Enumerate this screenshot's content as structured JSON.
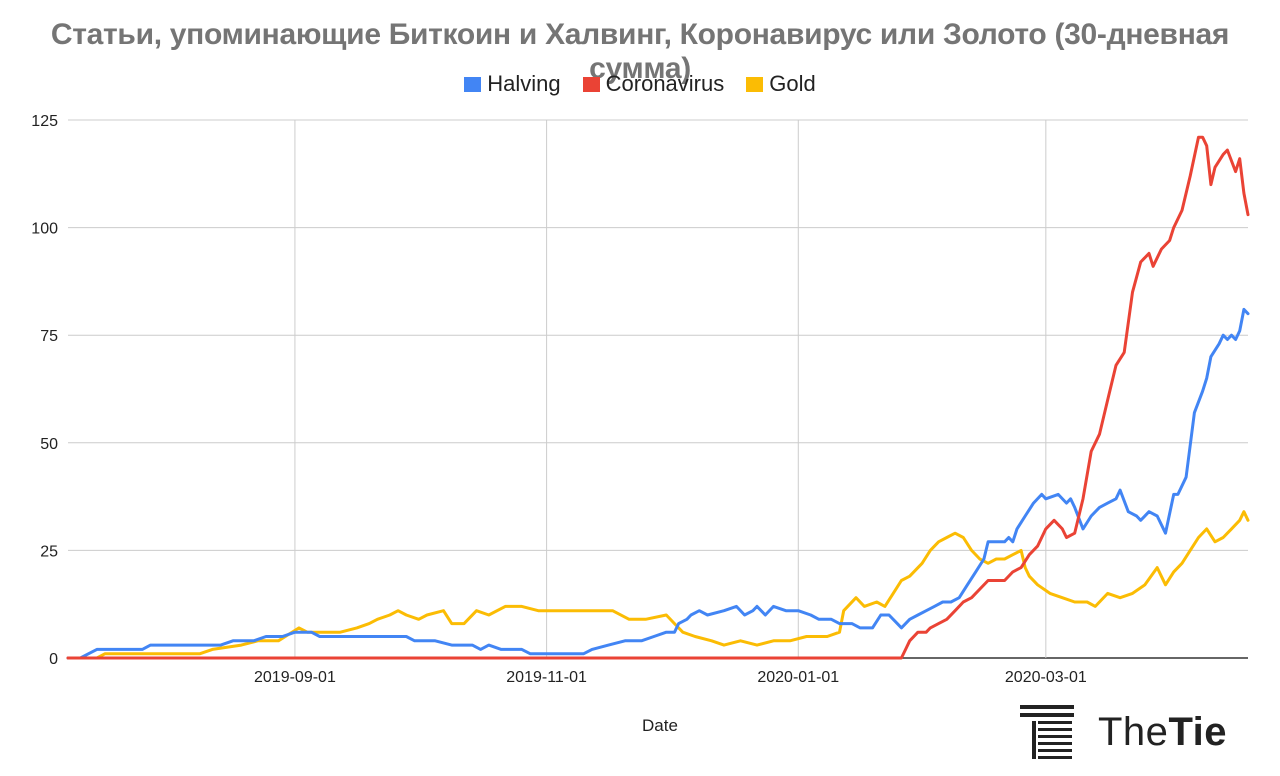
{
  "chart_data": {
    "type": "line",
    "title": "Статьи, упоминающие Биткоин и Халвинг, Коронавирус или Золото (30-дневная сумма)",
    "xlabel": "Date",
    "ylabel": "",
    "ylim": [
      0,
      125
    ],
    "yticks": [
      "0",
      "25",
      "50",
      "75",
      "100",
      "125"
    ],
    "xticks": [
      "2019-09-01",
      "2019-11-01",
      "2020-01-01",
      "2020-03-01"
    ],
    "xrange": [
      "2019-07-08",
      "2020-04-19"
    ],
    "grid": true,
    "legend_position": "top",
    "series": [
      {
        "name": "Halving",
        "color": "#4285f4",
        "points": [
          [
            "2019-07-08",
            0
          ],
          [
            "2019-07-11",
            0
          ],
          [
            "2019-07-13",
            1
          ],
          [
            "2019-07-15",
            2
          ],
          [
            "2019-07-22",
            2
          ],
          [
            "2019-07-26",
            2
          ],
          [
            "2019-07-28",
            3
          ],
          [
            "2019-08-06",
            3
          ],
          [
            "2019-08-14",
            3
          ],
          [
            "2019-08-17",
            4
          ],
          [
            "2019-08-22",
            4
          ],
          [
            "2019-08-25",
            5
          ],
          [
            "2019-08-29",
            5
          ],
          [
            "2019-09-01",
            6
          ],
          [
            "2019-09-05",
            6
          ],
          [
            "2019-09-07",
            5
          ],
          [
            "2019-09-17",
            5
          ],
          [
            "2019-09-23",
            5
          ],
          [
            "2019-09-28",
            5
          ],
          [
            "2019-09-30",
            4
          ],
          [
            "2019-10-05",
            4
          ],
          [
            "2019-10-09",
            3
          ],
          [
            "2019-10-14",
            3
          ],
          [
            "2019-10-16",
            2
          ],
          [
            "2019-10-18",
            3
          ],
          [
            "2019-10-21",
            2
          ],
          [
            "2019-10-26",
            2
          ],
          [
            "2019-10-28",
            1
          ],
          [
            "2019-11-01",
            1
          ],
          [
            "2019-11-06",
            1
          ],
          [
            "2019-11-10",
            1
          ],
          [
            "2019-11-12",
            2
          ],
          [
            "2019-11-16",
            3
          ],
          [
            "2019-11-20",
            4
          ],
          [
            "2019-11-24",
            4
          ],
          [
            "2019-11-27",
            5
          ],
          [
            "2019-11-30",
            6
          ],
          [
            "2019-12-02",
            6
          ],
          [
            "2019-12-03",
            8
          ],
          [
            "2019-12-05",
            9
          ],
          [
            "2019-12-06",
            10
          ],
          [
            "2019-12-08",
            11
          ],
          [
            "2019-12-10",
            10
          ],
          [
            "2019-12-14",
            11
          ],
          [
            "2019-12-17",
            12
          ],
          [
            "2019-12-19",
            10
          ],
          [
            "2019-12-21",
            11
          ],
          [
            "2019-12-22",
            12
          ],
          [
            "2019-12-24",
            10
          ],
          [
            "2019-12-26",
            12
          ],
          [
            "2019-12-29",
            11
          ],
          [
            "2020-01-01",
            11
          ],
          [
            "2020-01-04",
            10
          ],
          [
            "2020-01-06",
            9
          ],
          [
            "2020-01-09",
            9
          ],
          [
            "2020-01-11",
            8
          ],
          [
            "2020-01-14",
            8
          ],
          [
            "2020-01-16",
            7
          ],
          [
            "2020-01-19",
            7
          ],
          [
            "2020-01-21",
            10
          ],
          [
            "2020-01-23",
            10
          ],
          [
            "2020-01-25",
            8
          ],
          [
            "2020-01-26",
            7
          ],
          [
            "2020-01-28",
            9
          ],
          [
            "2020-01-30",
            10
          ],
          [
            "2020-02-01",
            11
          ],
          [
            "2020-02-03",
            12
          ],
          [
            "2020-02-05",
            13
          ],
          [
            "2020-02-07",
            13
          ],
          [
            "2020-02-09",
            14
          ],
          [
            "2020-02-11",
            17
          ],
          [
            "2020-02-13",
            20
          ],
          [
            "2020-02-15",
            23
          ],
          [
            "2020-02-16",
            27
          ],
          [
            "2020-02-19",
            27
          ],
          [
            "2020-02-20",
            27
          ],
          [
            "2020-02-21",
            28
          ],
          [
            "2020-02-22",
            27
          ],
          [
            "2020-02-23",
            30
          ],
          [
            "2020-02-25",
            33
          ],
          [
            "2020-02-27",
            36
          ],
          [
            "2020-02-29",
            38
          ],
          [
            "2020-03-01",
            37
          ],
          [
            "2020-03-04",
            38
          ],
          [
            "2020-03-06",
            36
          ],
          [
            "2020-03-07",
            37
          ],
          [
            "2020-03-08",
            35
          ],
          [
            "2020-03-10",
            30
          ],
          [
            "2020-03-12",
            33
          ],
          [
            "2020-03-14",
            35
          ],
          [
            "2020-03-16",
            36
          ],
          [
            "2020-03-18",
            37
          ],
          [
            "2020-03-19",
            39
          ],
          [
            "2020-03-21",
            34
          ],
          [
            "2020-03-23",
            33
          ],
          [
            "2020-03-24",
            32
          ],
          [
            "2020-03-26",
            34
          ],
          [
            "2020-03-28",
            33
          ],
          [
            "2020-03-30",
            29
          ],
          [
            "2020-04-01",
            38
          ],
          [
            "2020-04-02",
            38
          ],
          [
            "2020-04-04",
            42
          ],
          [
            "2020-04-06",
            57
          ],
          [
            "2020-04-08",
            62
          ],
          [
            "2020-04-09",
            65
          ],
          [
            "2020-04-10",
            70
          ],
          [
            "2020-04-12",
            73
          ],
          [
            "2020-04-13",
            75
          ],
          [
            "2020-04-14",
            74
          ],
          [
            "2020-04-15",
            75
          ],
          [
            "2020-04-16",
            74
          ],
          [
            "2020-04-17",
            76
          ],
          [
            "2020-04-18",
            81
          ],
          [
            "2020-04-19",
            80
          ]
        ]
      },
      {
        "name": "Coronavirus",
        "color": "#ea4335",
        "points": [
          [
            "2019-07-08",
            0
          ],
          [
            "2020-01-25",
            0
          ],
          [
            "2020-01-26",
            0
          ],
          [
            "2020-01-27",
            2
          ],
          [
            "2020-01-28",
            4
          ],
          [
            "2020-01-30",
            6
          ],
          [
            "2020-02-01",
            6
          ],
          [
            "2020-02-02",
            7
          ],
          [
            "2020-02-04",
            8
          ],
          [
            "2020-02-06",
            9
          ],
          [
            "2020-02-08",
            11
          ],
          [
            "2020-02-10",
            13
          ],
          [
            "2020-02-12",
            14
          ],
          [
            "2020-02-14",
            16
          ],
          [
            "2020-02-16",
            18
          ],
          [
            "2020-02-18",
            18
          ],
          [
            "2020-02-20",
            18
          ],
          [
            "2020-02-22",
            20
          ],
          [
            "2020-02-24",
            21
          ],
          [
            "2020-02-26",
            24
          ],
          [
            "2020-02-28",
            26
          ],
          [
            "2020-03-01",
            30
          ],
          [
            "2020-03-03",
            32
          ],
          [
            "2020-03-05",
            30
          ],
          [
            "2020-03-06",
            28
          ],
          [
            "2020-03-08",
            29
          ],
          [
            "2020-03-10",
            37
          ],
          [
            "2020-03-12",
            48
          ],
          [
            "2020-03-14",
            52
          ],
          [
            "2020-03-16",
            60
          ],
          [
            "2020-03-18",
            68
          ],
          [
            "2020-03-20",
            71
          ],
          [
            "2020-03-22",
            85
          ],
          [
            "2020-03-24",
            92
          ],
          [
            "2020-03-26",
            94
          ],
          [
            "2020-03-27",
            91
          ],
          [
            "2020-03-29",
            95
          ],
          [
            "2020-03-31",
            97
          ],
          [
            "2020-04-01",
            100
          ],
          [
            "2020-04-03",
            104
          ],
          [
            "2020-04-05",
            112
          ],
          [
            "2020-04-07",
            121
          ],
          [
            "2020-04-08",
            121
          ],
          [
            "2020-04-09",
            119
          ],
          [
            "2020-04-10",
            110
          ],
          [
            "2020-04-11",
            114
          ],
          [
            "2020-04-13",
            117
          ],
          [
            "2020-04-14",
            118
          ],
          [
            "2020-04-16",
            113
          ],
          [
            "2020-04-17",
            116
          ],
          [
            "2020-04-18",
            108
          ],
          [
            "2020-04-19",
            103
          ]
        ]
      },
      {
        "name": "Gold",
        "color": "#fbbc04",
        "points": [
          [
            "2019-07-08",
            0
          ],
          [
            "2019-07-15",
            0
          ],
          [
            "2019-07-17",
            1
          ],
          [
            "2019-07-24",
            1
          ],
          [
            "2019-08-09",
            1
          ],
          [
            "2019-08-12",
            2
          ],
          [
            "2019-08-19",
            3
          ],
          [
            "2019-08-23",
            4
          ],
          [
            "2019-08-28",
            4
          ],
          [
            "2019-09-02",
            7
          ],
          [
            "2019-09-04",
            6
          ],
          [
            "2019-09-07",
            6
          ],
          [
            "2019-09-12",
            6
          ],
          [
            "2019-09-16",
            7
          ],
          [
            "2019-09-19",
            8
          ],
          [
            "2019-09-21",
            9
          ],
          [
            "2019-09-24",
            10
          ],
          [
            "2019-09-26",
            11
          ],
          [
            "2019-09-28",
            10
          ],
          [
            "2019-10-01",
            9
          ],
          [
            "2019-10-03",
            10
          ],
          [
            "2019-10-07",
            11
          ],
          [
            "2019-10-09",
            8
          ],
          [
            "2019-10-12",
            8
          ],
          [
            "2019-10-15",
            11
          ],
          [
            "2019-10-18",
            10
          ],
          [
            "2019-10-22",
            12
          ],
          [
            "2019-10-26",
            12
          ],
          [
            "2019-10-30",
            11
          ],
          [
            "2019-11-10",
            11
          ],
          [
            "2019-11-17",
            11
          ],
          [
            "2019-11-21",
            9
          ],
          [
            "2019-11-25",
            9
          ],
          [
            "2019-11-30",
            10
          ],
          [
            "2019-12-02",
            8
          ],
          [
            "2019-12-04",
            6
          ],
          [
            "2019-12-07",
            5
          ],
          [
            "2019-12-11",
            4
          ],
          [
            "2019-12-14",
            3
          ],
          [
            "2019-12-18",
            4
          ],
          [
            "2019-12-22",
            3
          ],
          [
            "2019-12-26",
            4
          ],
          [
            "2019-12-30",
            4
          ],
          [
            "2020-01-03",
            5
          ],
          [
            "2020-01-08",
            5
          ],
          [
            "2020-01-11",
            6
          ],
          [
            "2020-01-12",
            11
          ],
          [
            "2020-01-15",
            14
          ],
          [
            "2020-01-17",
            12
          ],
          [
            "2020-01-20",
            13
          ],
          [
            "2020-01-22",
            12
          ],
          [
            "2020-01-24",
            15
          ],
          [
            "2020-01-26",
            18
          ],
          [
            "2020-01-28",
            19
          ],
          [
            "2020-01-31",
            22
          ],
          [
            "2020-02-02",
            25
          ],
          [
            "2020-02-04",
            27
          ],
          [
            "2020-02-06",
            28
          ],
          [
            "2020-02-08",
            29
          ],
          [
            "2020-02-10",
            28
          ],
          [
            "2020-02-12",
            25
          ],
          [
            "2020-02-14",
            23
          ],
          [
            "2020-02-16",
            22
          ],
          [
            "2020-02-18",
            23
          ],
          [
            "2020-02-20",
            23
          ],
          [
            "2020-02-22",
            24
          ],
          [
            "2020-02-24",
            25
          ],
          [
            "2020-02-25",
            21
          ],
          [
            "2020-02-26",
            19
          ],
          [
            "2020-02-28",
            17
          ],
          [
            "2020-03-02",
            15
          ],
          [
            "2020-03-05",
            14
          ],
          [
            "2020-03-08",
            13
          ],
          [
            "2020-03-11",
            13
          ],
          [
            "2020-03-13",
            12
          ],
          [
            "2020-03-16",
            15
          ],
          [
            "2020-03-19",
            14
          ],
          [
            "2020-03-22",
            15
          ],
          [
            "2020-03-25",
            17
          ],
          [
            "2020-03-28",
            21
          ],
          [
            "2020-03-30",
            17
          ],
          [
            "2020-04-01",
            20
          ],
          [
            "2020-04-03",
            22
          ],
          [
            "2020-04-05",
            25
          ],
          [
            "2020-04-07",
            28
          ],
          [
            "2020-04-09",
            30
          ],
          [
            "2020-04-11",
            27
          ],
          [
            "2020-04-13",
            28
          ],
          [
            "2020-04-15",
            30
          ],
          [
            "2020-04-17",
            32
          ],
          [
            "2020-04-18",
            34
          ],
          [
            "2020-04-19",
            32
          ]
        ]
      }
    ]
  },
  "branding": {
    "logo_text_light": "The",
    "logo_text_bold": "Tie"
  }
}
